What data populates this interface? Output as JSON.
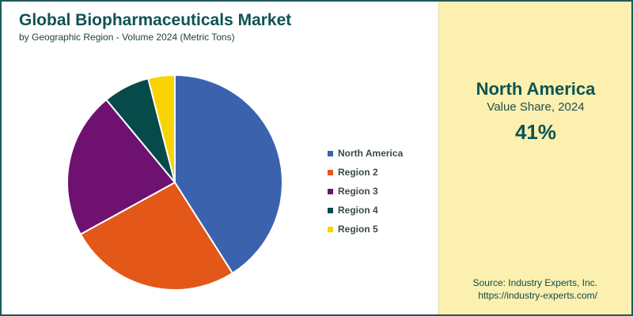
{
  "header": {
    "title": "Global Biopharmaceuticals Market",
    "subtitle": "by Geographic Region - Volume 2024 (Metric Tons)"
  },
  "chart_data": {
    "type": "pie",
    "title": "Global Biopharmaceuticals Market",
    "subtitle": "by Geographic Region - Volume 2024 (Metric Tons)",
    "categories": [
      "North America",
      "Region 2",
      "Region 3",
      "Region 4",
      "Region 5"
    ],
    "values": [
      41,
      26,
      22,
      7,
      4
    ],
    "colors": [
      "#3a62ad",
      "#e35818",
      "#6e1170",
      "#064a4a",
      "#fad304"
    ],
    "legend": "right"
  },
  "highlight": {
    "region": "North America",
    "caption": "Value Share, 2024",
    "value": "41%"
  },
  "source": {
    "line1": "Source: Industry Experts, Inc.",
    "line2": "https://industry-experts.com/"
  },
  "colors": {
    "accent": "#0f5353",
    "panel": "#fbf0b0",
    "border": "#1f5a5a"
  }
}
